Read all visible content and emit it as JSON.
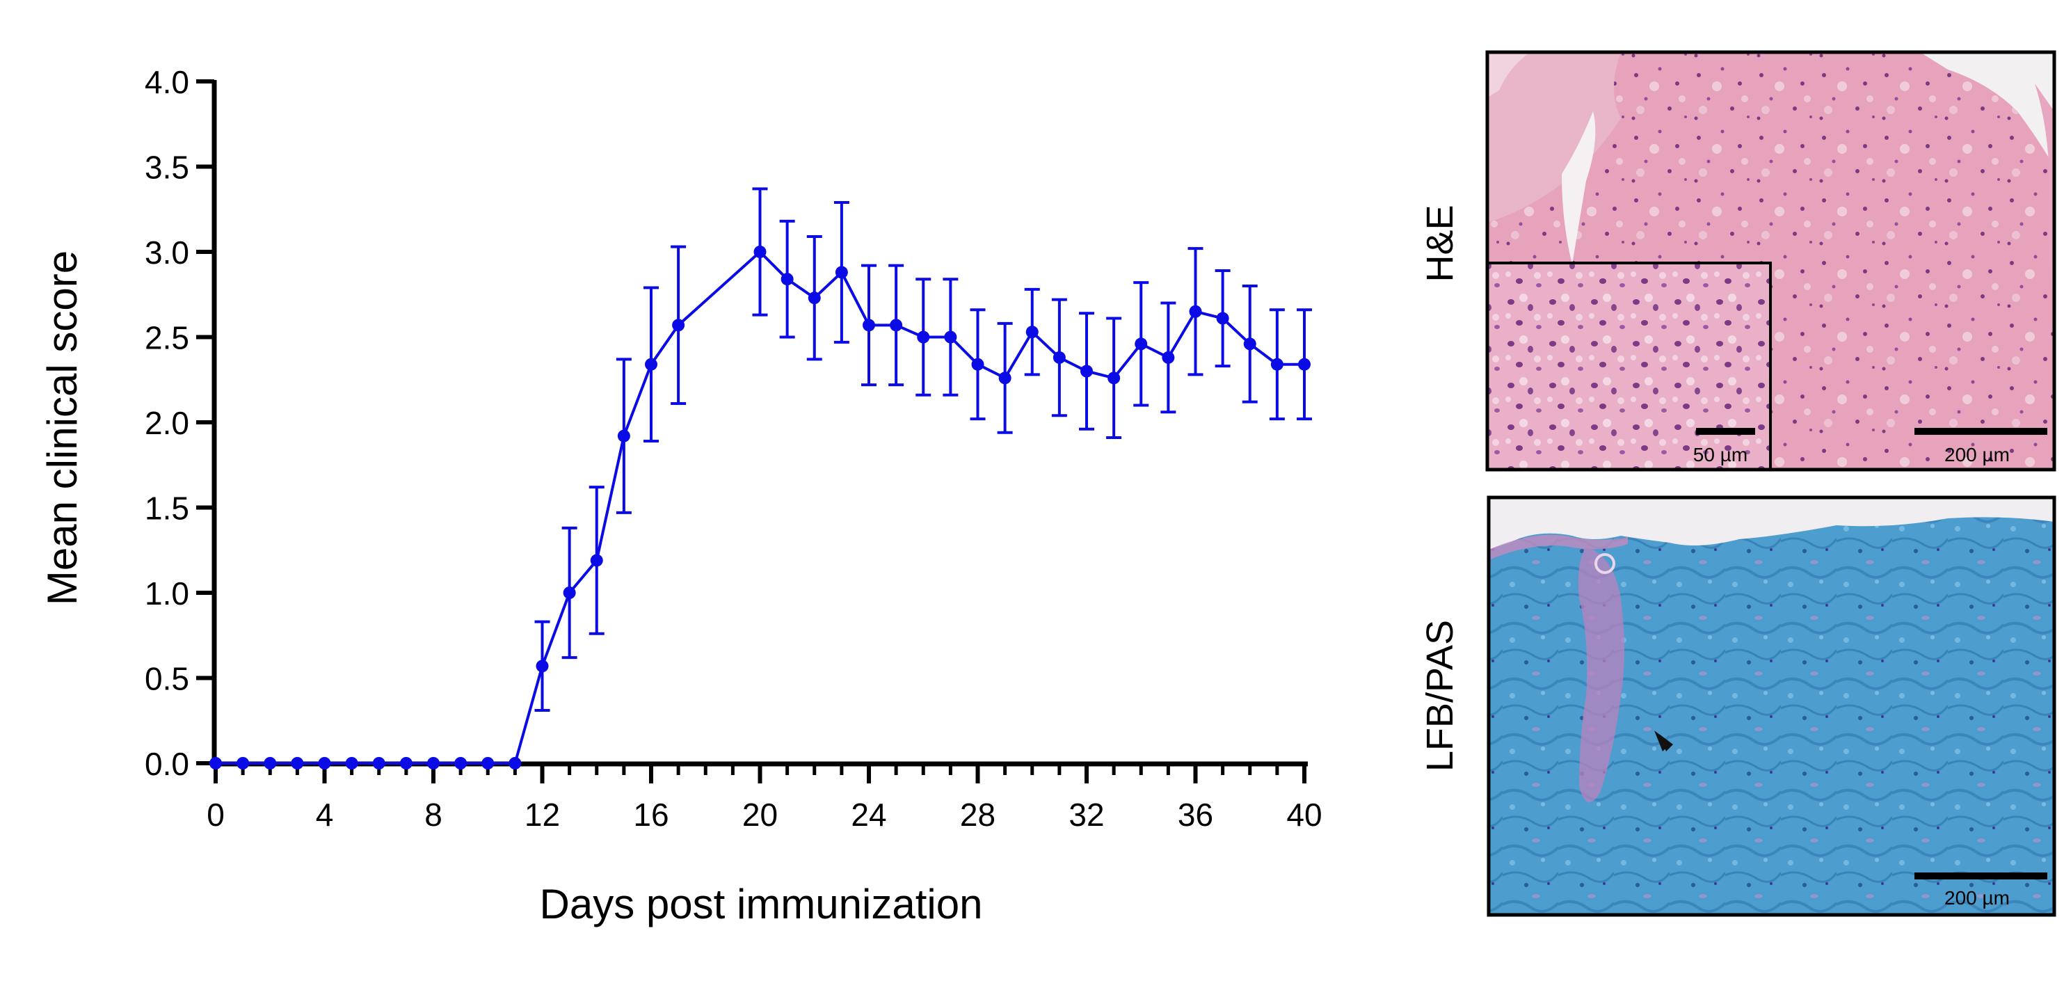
{
  "chart_data": {
    "type": "line",
    "xlabel": "Days post immunization",
    "ylabel": "Mean clinical score",
    "xlim": [
      0,
      40
    ],
    "ylim": [
      0,
      4.0
    ],
    "x_ticks": [
      0,
      4,
      8,
      12,
      16,
      20,
      24,
      28,
      32,
      36,
      40
    ],
    "y_ticks": [
      "0.0",
      "0.5",
      "1.0",
      "1.5",
      "2.0",
      "2.5",
      "3.0",
      "3.5",
      "4.0"
    ],
    "grid": false,
    "color": "#0b0be6",
    "marker": "circle",
    "error_bars": true,
    "series": [
      {
        "x": [
          0,
          1,
          2,
          3,
          4,
          5,
          6,
          7,
          8,
          9,
          10,
          11,
          12,
          13,
          14,
          15,
          16,
          17,
          20,
          21,
          22,
          23,
          24,
          25,
          26,
          27,
          28,
          29,
          30,
          31,
          32,
          33,
          34,
          35,
          36,
          37,
          38,
          39,
          40
        ],
        "values": [
          0,
          0,
          0,
          0,
          0,
          0,
          0,
          0,
          0,
          0,
          0,
          0,
          0.57,
          1.0,
          1.19,
          1.92,
          2.34,
          2.57,
          3.0,
          2.84,
          2.73,
          2.88,
          2.57,
          2.57,
          2.5,
          2.5,
          2.34,
          2.26,
          2.53,
          2.38,
          2.3,
          2.26,
          2.46,
          2.38,
          2.65,
          2.61,
          2.46,
          2.34,
          2.34
        ],
        "error": [
          0,
          0,
          0,
          0,
          0,
          0,
          0,
          0,
          0,
          0,
          0,
          0,
          0.26,
          0.38,
          0.43,
          0.45,
          0.45,
          0.46,
          0.37,
          0.34,
          0.36,
          0.41,
          0.35,
          0.35,
          0.34,
          0.34,
          0.32,
          0.32,
          0.25,
          0.34,
          0.34,
          0.35,
          0.36,
          0.32,
          0.37,
          0.28,
          0.34,
          0.32,
          0.32
        ]
      }
    ]
  },
  "panels": [
    {
      "label": "H&E",
      "stain": "hematoxylin-eosin",
      "colors": {
        "background": "#e7a3bc",
        "tissue": "#e49ab6",
        "nuclei": "#7b3a82",
        "space": "#f3eff0"
      },
      "scalebar": "200 µm",
      "inset": {
        "scalebar": "50 µm"
      }
    },
    {
      "label": "LFB/PAS",
      "stain": "luxol-fast-blue-pas",
      "colors": {
        "background": "#4a9ccb",
        "tissue": "#5aa3d4",
        "pink": "#c17fb8",
        "space": "#f0eef2"
      },
      "scalebar": "200 µm",
      "arrowhead": true
    }
  ]
}
